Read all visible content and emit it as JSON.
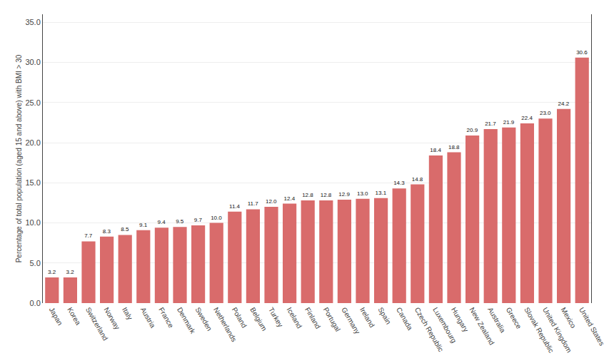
{
  "chart_data": {
    "type": "bar",
    "categories": [
      "Japan",
      "Korea",
      "Switzerland",
      "Norway",
      "Italy",
      "Austria",
      "France",
      "Denmark",
      "Sweden",
      "Netherlands",
      "Poland",
      "Belgium",
      "Turkey",
      "Iceland",
      "Finland",
      "Portugal",
      "Germany",
      "Ireland",
      "Spain",
      "Canada",
      "Czech Republic",
      "Luxembourg",
      "Hungary",
      "New Zealand",
      "Australia",
      "Greece",
      "Slovak Republic",
      "United Kingdom",
      "Mexico",
      "United States"
    ],
    "values": [
      3.2,
      3.2,
      7.7,
      8.3,
      8.5,
      9.1,
      9.4,
      9.5,
      9.7,
      10.0,
      11.4,
      11.7,
      12.0,
      12.4,
      12.8,
      12.8,
      12.9,
      13.0,
      13.1,
      14.3,
      14.8,
      18.4,
      18.8,
      20.9,
      21.7,
      21.9,
      22.4,
      23.0,
      24.2,
      30.6
    ],
    "value_labels": [
      "3.2",
      "3.2",
      "7.7",
      "8.3",
      "8.5",
      "9.1",
      "9.4",
      "9.5",
      "9.7",
      "10.0",
      "11.4",
      "11.7",
      "12.0",
      "12.4",
      "12.8",
      "12.8",
      "12.9",
      "13.0",
      "13.1",
      "14.3",
      "14.8",
      "18.4",
      "18.8",
      "20.9",
      "21.7",
      "21.9",
      "22.4",
      "23.0",
      "24.2",
      "30.6"
    ],
    "data_labels": true,
    "color": "#d96b6b",
    "ylabel": "Percentage of total population (aged 15 and above) with BMI > 30",
    "ylim": [
      0,
      36.0
    ],
    "yticks": [
      {
        "value": 0.0,
        "label": "0.0"
      },
      {
        "value": 5.0,
        "label": "5.0"
      },
      {
        "value": 10.0,
        "label": "10.0"
      },
      {
        "value": 15.0,
        "label": "15.0"
      },
      {
        "value": 20.0,
        "label": "20.0"
      },
      {
        "value": 25.0,
        "label": "25.0"
      },
      {
        "value": 30.0,
        "label": "30.0"
      },
      {
        "value": 35.0,
        "label": "35.0"
      }
    ],
    "grid": true
  }
}
